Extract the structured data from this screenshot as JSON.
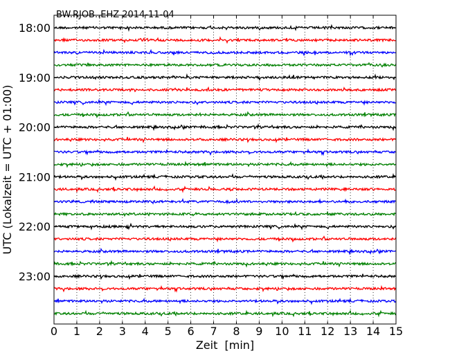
{
  "chart_data": {
    "type": "line",
    "title": "BW.RJOB..EHZ 2014-11-04",
    "xlabel": "Zeit  [min]",
    "ylabel": "UTC (Lokalzeit = UTC + 01:00)",
    "xlim": [
      0,
      15
    ],
    "x_ticks": [
      "0",
      "1",
      "2",
      "3",
      "4",
      "5",
      "6",
      "7",
      "8",
      "9",
      "10",
      "11",
      "12",
      "13",
      "14",
      "15"
    ],
    "y_tick_labels": [
      "18:00",
      "19:00",
      "20:00",
      "21:00",
      "22:00",
      "23:00"
    ],
    "grid": "vertical dotted",
    "trace_colors": [
      "#000000",
      "#ff0000",
      "#0000ff",
      "#008000"
    ],
    "trace_count": 24,
    "segment_minutes": 15
  }
}
